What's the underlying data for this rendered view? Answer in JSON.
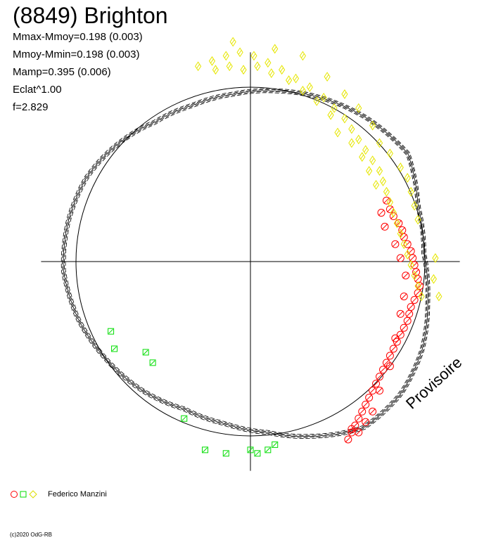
{
  "title": "(8849) Brighton",
  "stats": [
    "Mmax-Mmoy=0.198 (0.003)",
    "Mmoy-Mmin=0.198 (0.003)",
    "Mamp=0.395 (0.006)",
    "Eclat^1.00",
    "f=2.829"
  ],
  "watermark": "Provisoire",
  "legend": {
    "observer": "Federico Manzini"
  },
  "copyright": "(c)2020 OdG-RB",
  "colors": {
    "session1": "#ff0000",
    "session2": "#00dd00",
    "session3": "#ffff00",
    "axes": "#000000"
  },
  "chart_data": {
    "type": "scatter",
    "projection": "polar",
    "xlim": [
      -1.2,
      1.2
    ],
    "ylim": [
      -1.2,
      1.2
    ],
    "reference_circle_radius": 1.0,
    "fit_curve": {
      "samples": [
        [
          0.0,
          1.14
        ],
        [
          15,
          1.1
        ],
        [
          30,
          1.05
        ],
        [
          45,
          1.0
        ],
        [
          60,
          0.96
        ],
        [
          75,
          0.94
        ],
        [
          90,
          0.95
        ],
        [
          105,
          1.0
        ],
        [
          120,
          1.05
        ],
        [
          135,
          1.08
        ],
        [
          150,
          1.1
        ],
        [
          165,
          1.08
        ],
        [
          180,
          1.04
        ],
        [
          195,
          1.0
        ],
        [
          210,
          0.95
        ],
        [
          225,
          0.95
        ],
        [
          240,
          0.98
        ],
        [
          255,
          1.05
        ],
        [
          270,
          1.13
        ],
        [
          285,
          1.13
        ],
        [
          300,
          1.1
        ],
        [
          315,
          1.05
        ],
        [
          330,
          1.02
        ],
        [
          345,
          1.05
        ]
      ]
    },
    "series": [
      {
        "marker": "circle",
        "color": "#ff0000",
        "points": [
          [
            0.78,
            0.35
          ],
          [
            0.8,
            0.3
          ],
          [
            0.82,
            0.26
          ],
          [
            0.85,
            0.22
          ],
          [
            0.87,
            0.18
          ],
          [
            0.88,
            0.14
          ],
          [
            0.9,
            0.1
          ],
          [
            0.92,
            0.06
          ],
          [
            0.93,
            0.02
          ],
          [
            0.94,
            -0.02
          ],
          [
            0.95,
            -0.06
          ],
          [
            0.96,
            -0.1
          ],
          [
            0.97,
            -0.14
          ],
          [
            0.96,
            -0.18
          ],
          [
            0.94,
            -0.22
          ],
          [
            0.92,
            -0.26
          ],
          [
            0.91,
            -0.3
          ],
          [
            0.9,
            -0.34
          ],
          [
            0.88,
            -0.38
          ],
          [
            0.86,
            -0.42
          ],
          [
            0.84,
            -0.46
          ],
          [
            0.82,
            -0.5
          ],
          [
            0.8,
            -0.54
          ],
          [
            0.78,
            -0.58
          ],
          [
            0.76,
            -0.62
          ],
          [
            0.74,
            -0.66
          ],
          [
            0.72,
            -0.7
          ],
          [
            0.7,
            -0.74
          ],
          [
            0.68,
            -0.78
          ],
          [
            0.66,
            -0.82
          ],
          [
            0.64,
            -0.86
          ],
          [
            0.62,
            -0.9
          ],
          [
            0.6,
            -0.94
          ],
          [
            0.58,
            -0.98
          ],
          [
            0.56,
            -1.02
          ],
          [
            0.75,
            0.28
          ],
          [
            0.77,
            0.2
          ],
          [
            0.83,
            0.1
          ],
          [
            0.86,
            0.02
          ],
          [
            0.89,
            -0.08
          ],
          [
            0.88,
            -0.2
          ],
          [
            0.86,
            -0.3
          ],
          [
            0.83,
            -0.44
          ],
          [
            0.8,
            -0.6
          ],
          [
            0.74,
            -0.74
          ],
          [
            0.7,
            -0.86
          ],
          [
            0.66,
            -0.92
          ],
          [
            0.62,
            -0.98
          ],
          [
            0.58,
            -0.96
          ]
        ]
      },
      {
        "marker": "square",
        "color": "#00dd00",
        "points": [
          [
            -0.8,
            -0.4
          ],
          [
            -0.78,
            -0.5
          ],
          [
            -0.6,
            -0.52
          ],
          [
            -0.56,
            -0.58
          ],
          [
            -0.38,
            -0.9
          ],
          [
            -0.26,
            -1.08
          ],
          [
            -0.14,
            -1.1
          ],
          [
            0.0,
            -1.08
          ],
          [
            0.04,
            -1.1
          ],
          [
            0.1,
            -1.08
          ],
          [
            0.14,
            -1.05
          ]
        ]
      },
      {
        "marker": "diamond",
        "color": "#ffff00",
        "points": [
          [
            -0.3,
            1.12
          ],
          [
            -0.22,
            1.15
          ],
          [
            -0.14,
            1.18
          ],
          [
            -0.06,
            1.2
          ],
          [
            0.02,
            1.18
          ],
          [
            0.1,
            1.14
          ],
          [
            0.18,
            1.1
          ],
          [
            0.26,
            1.05
          ],
          [
            0.34,
            1.0
          ],
          [
            0.42,
            0.94
          ],
          [
            0.48,
            0.88
          ],
          [
            0.54,
            0.82
          ],
          [
            0.58,
            0.76
          ],
          [
            0.62,
            0.7
          ],
          [
            0.66,
            0.64
          ],
          [
            0.7,
            0.58
          ],
          [
            0.74,
            0.52
          ],
          [
            0.76,
            0.46
          ],
          [
            0.78,
            0.4
          ],
          [
            0.8,
            0.34
          ],
          [
            0.82,
            0.28
          ],
          [
            0.84,
            0.22
          ],
          [
            0.86,
            0.16
          ],
          [
            0.88,
            0.1
          ],
          [
            0.9,
            0.04
          ],
          [
            0.92,
            -0.02
          ],
          [
            0.94,
            -0.08
          ],
          [
            0.96,
            -0.14
          ],
          [
            0.98,
            -0.2
          ],
          [
            1.06,
            0.02
          ],
          [
            1.05,
            -0.1
          ],
          [
            1.08,
            -0.2
          ],
          [
            -0.1,
            1.26
          ],
          [
            0.14,
            1.22
          ],
          [
            0.3,
            1.18
          ],
          [
            0.44,
            1.06
          ],
          [
            0.54,
            0.96
          ],
          [
            0.62,
            0.88
          ],
          [
            0.7,
            0.78
          ],
          [
            0.74,
            0.68
          ],
          [
            0.8,
            0.62
          ],
          [
            0.86,
            0.54
          ],
          [
            0.9,
            0.48
          ],
          [
            0.92,
            0.4
          ],
          [
            0.94,
            0.32
          ],
          [
            0.96,
            0.24
          ],
          [
            0.72,
            0.44
          ],
          [
            0.68,
            0.52
          ],
          [
            0.64,
            0.6
          ],
          [
            0.58,
            0.68
          ],
          [
            0.5,
            0.74
          ],
          [
            0.46,
            0.84
          ],
          [
            0.38,
            0.92
          ],
          [
            0.3,
            0.98
          ],
          [
            0.22,
            1.04
          ],
          [
            0.12,
            1.08
          ],
          [
            0.04,
            1.12
          ],
          [
            -0.04,
            1.1
          ],
          [
            -0.12,
            1.12
          ],
          [
            -0.2,
            1.1
          ]
        ]
      }
    ]
  }
}
